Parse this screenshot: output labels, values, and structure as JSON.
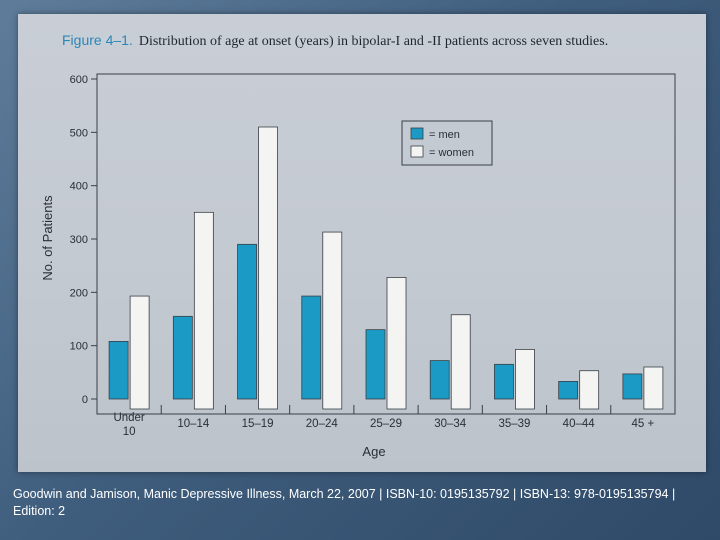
{
  "figure": {
    "number_label": "Figure 4–1.",
    "title_text": "Distribution of age at onset (years) in bipolar-I and -II patients across seven studies."
  },
  "caption": "Goodwin and Jamison, Manic Depressive Illness, March 22, 2007 | ISBN-10: 0195135792 | ISBN-13: 978-0195135794 | Edition: 2",
  "colors": {
    "men": "#1a9ac4",
    "women": "#f4f4f2",
    "axis": "#3a3f47",
    "page": "#c6ccd4"
  },
  "chart_data": {
    "type": "bar",
    "title": "Distribution of age at onset (years) in bipolar-I and -II patients across seven studies.",
    "xlabel": "Age",
    "ylabel": "No. of Patients",
    "ylim": [
      0,
      600
    ],
    "yticks": [
      0,
      100,
      200,
      300,
      400,
      500,
      600
    ],
    "categories": [
      "Under 10",
      "10–14",
      "15–19",
      "20–24",
      "25–29",
      "30–34",
      "35–39",
      "40–44",
      "45 +"
    ],
    "category_lines": [
      [
        "Under",
        "10"
      ],
      [
        "10–14"
      ],
      [
        "15–19"
      ],
      [
        "20–24"
      ],
      [
        "25–29"
      ],
      [
        "30–34"
      ],
      [
        "35–39"
      ],
      [
        "40–44"
      ],
      [
        "45 +"
      ]
    ],
    "series": [
      {
        "name": "= men",
        "values": [
          108,
          155,
          290,
          193,
          130,
          72,
          65,
          33,
          47
        ]
      },
      {
        "name": "= women",
        "values": [
          193,
          350,
          510,
          313,
          228,
          158,
          93,
          53,
          60
        ]
      }
    ],
    "legend_position": "top-right",
    "grid": false
  }
}
